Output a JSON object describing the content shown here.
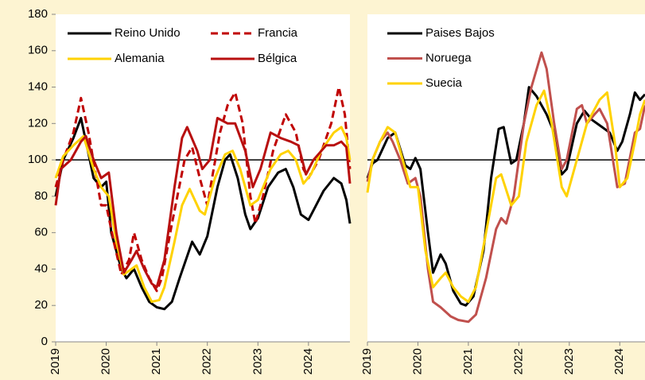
{
  "chart_data": [
    {
      "type": "line",
      "xlim": [
        2019,
        2024.82
      ],
      "ylim": [
        0,
        180
      ],
      "xticks": [
        2019,
        2020,
        2021,
        2022,
        2023,
        2024
      ],
      "yticks": [
        0,
        20,
        40,
        60,
        80,
        100,
        120,
        140,
        160,
        180
      ],
      "hline": 100,
      "series": [
        {
          "name": "Reino Unido",
          "color": "#000000",
          "x": [
            2019,
            2019.15,
            2019.35,
            2019.5,
            2019.75,
            2019.9,
            2020.0,
            2020.1,
            2020.3,
            2020.4,
            2020.55,
            2020.7,
            2020.85,
            2021.0,
            2021.15,
            2021.3,
            2021.45,
            2021.7,
            2021.85,
            2022.0,
            2022.2,
            2022.35,
            2022.45,
            2022.6,
            2022.75,
            2022.85,
            2023.0,
            2023.2,
            2023.4,
            2023.55,
            2023.7,
            2023.85,
            2024.0,
            2024.15,
            2024.3,
            2024.5,
            2024.65,
            2024.75,
            2024.82
          ],
          "values": [
            80,
            100,
            112,
            123,
            90,
            85,
            88,
            60,
            40,
            35,
            40,
            30,
            22,
            19,
            18,
            22,
            35,
            55,
            48,
            58,
            85,
            100,
            103,
            90,
            70,
            62,
            68,
            85,
            93,
            95,
            85,
            70,
            67,
            75,
            83,
            90,
            87,
            78,
            65
          ]
        },
        {
          "name": "Francia",
          "color": "#c00000",
          "dashed": true,
          "x": [
            2019,
            2019.15,
            2019.35,
            2019.5,
            2019.65,
            2019.9,
            2020.0,
            2020.15,
            2020.3,
            2020.45,
            2020.55,
            2020.7,
            2020.85,
            2021.0,
            2021.1,
            2021.3,
            2021.55,
            2021.7,
            2021.85,
            2022.0,
            2022.25,
            2022.4,
            2022.55,
            2022.7,
            2022.85,
            2022.95,
            2023.1,
            2023.3,
            2023.55,
            2023.75,
            2023.9,
            2024.0,
            2024.2,
            2024.45,
            2024.6,
            2024.72,
            2024.82
          ],
          "values": [
            85,
            100,
            115,
            134,
            115,
            75,
            75,
            55,
            37,
            45,
            60,
            45,
            35,
            28,
            35,
            65,
            100,
            107,
            90,
            75,
            115,
            130,
            137,
            120,
            80,
            65,
            80,
            105,
            125,
            115,
            95,
            90,
            100,
            120,
            140,
            125,
            95
          ]
        },
        {
          "name": "Alemania",
          "color": "#ffd200",
          "x": [
            2019,
            2019.15,
            2019.35,
            2019.55,
            2019.75,
            2019.9,
            2020.05,
            2020.2,
            2020.35,
            2020.5,
            2020.6,
            2020.75,
            2020.9,
            2021.05,
            2021.15,
            2021.35,
            2021.5,
            2021.65,
            2021.85,
            2021.95,
            2022.15,
            2022.35,
            2022.5,
            2022.65,
            2022.85,
            2023.0,
            2023.25,
            2023.45,
            2023.6,
            2023.75,
            2023.9,
            2024.05,
            2024.25,
            2024.5,
            2024.65,
            2024.75,
            2024.82
          ],
          "values": [
            90,
            102,
            108,
            113,
            95,
            85,
            80,
            55,
            37,
            40,
            42,
            30,
            22,
            23,
            30,
            55,
            75,
            84,
            72,
            70,
            90,
            103,
            105,
            95,
            75,
            78,
            95,
            103,
            105,
            100,
            87,
            92,
            105,
            115,
            118,
            112,
            100
          ]
        },
        {
          "name": "Bélgica",
          "color": "#b80f0f",
          "x": [
            2019,
            2019.1,
            2019.3,
            2019.5,
            2019.6,
            2019.75,
            2019.9,
            2020.05,
            2020.2,
            2020.35,
            2020.5,
            2020.6,
            2020.75,
            2020.9,
            2021.0,
            2021.15,
            2021.35,
            2021.5,
            2021.6,
            2021.8,
            2021.9,
            2022.05,
            2022.2,
            2022.4,
            2022.55,
            2022.75,
            2022.9,
            2023.05,
            2023.25,
            2023.45,
            2023.65,
            2023.8,
            2023.95,
            2024.1,
            2024.35,
            2024.5,
            2024.65,
            2024.75,
            2024.82
          ],
          "values": [
            75,
            95,
            100,
            110,
            113,
            100,
            90,
            93,
            60,
            38,
            45,
            50,
            40,
            32,
            30,
            45,
            85,
            112,
            118,
            105,
            95,
            100,
            123,
            120,
            120,
            105,
            85,
            95,
            115,
            112,
            110,
            108,
            92,
            100,
            108,
            108,
            110,
            107,
            87
          ]
        }
      ]
    },
    {
      "type": "line",
      "xlim": [
        2019,
        2024.5
      ],
      "ylim": [
        0,
        180
      ],
      "xticks": [
        2019,
        2020,
        2021,
        2022,
        2023,
        2024
      ],
      "hline": 100,
      "series": [
        {
          "name": "Paises Bajos",
          "color": "#000000",
          "x": [
            2019,
            2019.1,
            2019.2,
            2019.4,
            2019.55,
            2019.75,
            2019.85,
            2019.95,
            2020.05,
            2020.2,
            2020.3,
            2020.45,
            2020.55,
            2020.7,
            2020.85,
            2020.95,
            2021.1,
            2021.3,
            2021.45,
            2021.6,
            2021.7,
            2021.85,
            2021.95,
            2022.1,
            2022.2,
            2022.35,
            2022.55,
            2022.7,
            2022.85,
            2022.95,
            2023.15,
            2023.3,
            2023.45,
            2023.65,
            2023.8,
            2023.95,
            2024.05,
            2024.2,
            2024.3,
            2024.4,
            2024.5
          ],
          "values": [
            90,
            98,
            100,
            112,
            115,
            97,
            95,
            101,
            95,
            60,
            38,
            48,
            43,
            28,
            21,
            20,
            25,
            50,
            90,
            117,
            118,
            98,
            100,
            120,
            140,
            135,
            125,
            115,
            92,
            95,
            120,
            127,
            122,
            118,
            115,
            105,
            110,
            125,
            137,
            133,
            136
          ]
        },
        {
          "name": "Noruega",
          "color": "#c0504d",
          "x": [
            2019,
            2019.1,
            2019.25,
            2019.4,
            2019.5,
            2019.65,
            2019.8,
            2019.95,
            2020.05,
            2020.2,
            2020.3,
            2020.45,
            2020.65,
            2020.8,
            2021.0,
            2021.15,
            2021.35,
            2021.55,
            2021.65,
            2021.75,
            2021.9,
            2022.1,
            2022.25,
            2022.45,
            2022.55,
            2022.7,
            2022.85,
            2022.95,
            2023.15,
            2023.25,
            2023.35,
            2023.5,
            2023.6,
            2023.75,
            2023.95,
            2024.1,
            2024.3,
            2024.4,
            2024.5
          ],
          "values": [
            88,
            100,
            110,
            115,
            110,
            100,
            87,
            90,
            80,
            40,
            22,
            19,
            14,
            12,
            11,
            15,
            35,
            62,
            68,
            65,
            80,
            120,
            140,
            159,
            150,
            120,
            95,
            100,
            128,
            130,
            120,
            125,
            128,
            120,
            85,
            87,
            115,
            117,
            130
          ]
        },
        {
          "name": "Suecia",
          "color": "#ffd200",
          "x": [
            2019,
            2019.1,
            2019.25,
            2019.4,
            2019.55,
            2019.7,
            2019.85,
            2020.0,
            2020.15,
            2020.3,
            2020.45,
            2020.55,
            2020.7,
            2020.85,
            2021.0,
            2021.15,
            2021.35,
            2021.55,
            2021.65,
            2021.85,
            2022.0,
            2022.15,
            2022.35,
            2022.5,
            2022.65,
            2022.85,
            2022.95,
            2023.15,
            2023.35,
            2023.6,
            2023.75,
            2023.9,
            2024.0,
            2024.15,
            2024.3,
            2024.4,
            2024.5
          ],
          "values": [
            82,
            100,
            110,
            118,
            115,
            100,
            85,
            85,
            50,
            30,
            35,
            38,
            30,
            25,
            22,
            30,
            60,
            90,
            92,
            75,
            80,
            110,
            130,
            138,
            120,
            85,
            80,
            100,
            120,
            133,
            137,
            110,
            85,
            90,
            110,
            125,
            133
          ]
        }
      ]
    }
  ]
}
